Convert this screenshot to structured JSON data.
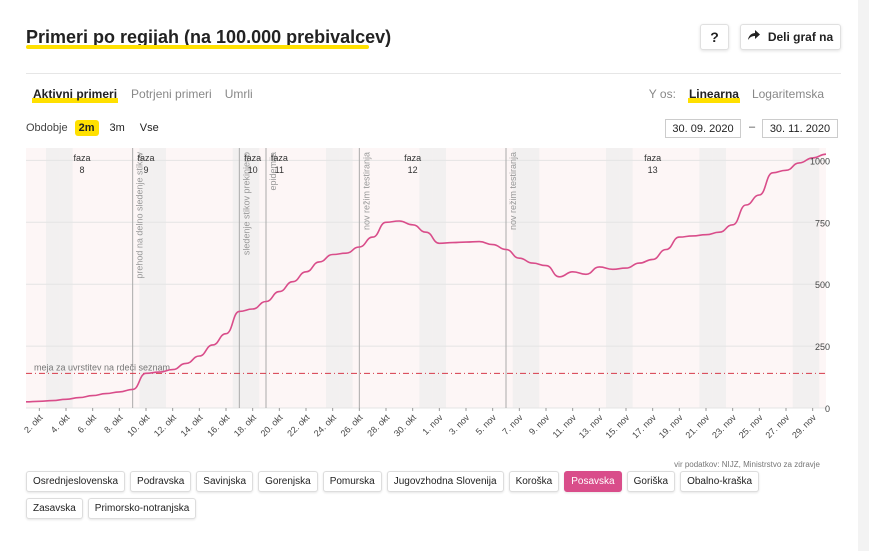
{
  "header": {
    "title": "Primeri po regijah (na 100.000 prebivalcev)",
    "help_label": "?",
    "share_label": "Deli graf na"
  },
  "tabs": [
    {
      "label": "Aktivni primeri",
      "active": true
    },
    {
      "label": "Potrjeni primeri",
      "active": false
    },
    {
      "label": "Umrli",
      "active": false
    }
  ],
  "yscale": {
    "label": "Y os:",
    "options": [
      {
        "label": "Linearna",
        "active": true
      },
      {
        "label": "Logaritemska",
        "active": false
      }
    ]
  },
  "period": {
    "label": "Obdobje",
    "options": [
      {
        "label": "2m",
        "active": true
      },
      {
        "label": "3m",
        "active": false
      },
      {
        "label": "Vse",
        "active": false
      }
    ]
  },
  "dates": {
    "from": "30. 09. 2020",
    "to": "30. 11. 2020",
    "separator": "–"
  },
  "source": "vir podatkov: NIJZ, Ministrstvo za zdravje",
  "regions": [
    {
      "label": "Osrednjeslovenska",
      "active": false
    },
    {
      "label": "Podravska",
      "active": false
    },
    {
      "label": "Savinjska",
      "active": false
    },
    {
      "label": "Gorenjska",
      "active": false
    },
    {
      "label": "Pomurska",
      "active": false
    },
    {
      "label": "Jugovzhodna Slovenija",
      "active": false
    },
    {
      "label": "Koroška",
      "active": false
    },
    {
      "label": "Posavska",
      "active": true
    },
    {
      "label": "Goriška",
      "active": false
    },
    {
      "label": "Obalno-kraška",
      "active": false
    },
    {
      "label": "Zasavska",
      "active": false
    },
    {
      "label": "Primorsko-notranjska",
      "active": false
    }
  ],
  "chart_data": {
    "type": "line",
    "title": "",
    "xlabel": "",
    "ylabel": "",
    "x_start": "2020-10-01",
    "x_end": "2020-11-30",
    "ylim": [
      0,
      1050
    ],
    "y_ticks": [
      "0",
      "250",
      "500",
      "750",
      "1000"
    ],
    "x_ticks": [
      "2. okt",
      "4. okt",
      "6. okt",
      "8. okt",
      "10. okt",
      "12. okt",
      "14. okt",
      "16. okt",
      "18. okt",
      "20. okt",
      "22. okt",
      "24. okt",
      "26. okt",
      "28. okt",
      "30. okt",
      "1. nov",
      "3. nov",
      "5. nov",
      "7. nov",
      "9. nov",
      "11. nov",
      "13. nov",
      "15. nov",
      "17. nov",
      "19. nov",
      "21. nov",
      "23. nov",
      "25. nov",
      "27. nov",
      "29. nov"
    ],
    "line_color": "#d94d8a",
    "series": [
      {
        "x": [
          "2020-10-01",
          "2020-10-02",
          "2020-10-03",
          "2020-10-04",
          "2020-10-05",
          "2020-10-06",
          "2020-10-07",
          "2020-10-08",
          "2020-10-09",
          "2020-10-10",
          "2020-10-11",
          "2020-10-12",
          "2020-10-13",
          "2020-10-14",
          "2020-10-15",
          "2020-10-16",
          "2020-10-17",
          "2020-10-18",
          "2020-10-19",
          "2020-10-20",
          "2020-10-21",
          "2020-10-22",
          "2020-10-23",
          "2020-10-24",
          "2020-10-25",
          "2020-10-26",
          "2020-10-27",
          "2020-10-28",
          "2020-10-29",
          "2020-10-30",
          "2020-10-31",
          "2020-11-01",
          "2020-11-02",
          "2020-11-03",
          "2020-11-04",
          "2020-11-05",
          "2020-11-06",
          "2020-11-07",
          "2020-11-08",
          "2020-11-09",
          "2020-11-10",
          "2020-11-11",
          "2020-11-12",
          "2020-11-13",
          "2020-11-14",
          "2020-11-15",
          "2020-11-16",
          "2020-11-17",
          "2020-11-18",
          "2020-11-19",
          "2020-11-20",
          "2020-11-21",
          "2020-11-22",
          "2020-11-23",
          "2020-11-24",
          "2020-11-25",
          "2020-11-26",
          "2020-11-27",
          "2020-11-28",
          "2020-11-29",
          "2020-11-30"
        ],
        "values": [
          25,
          27,
          30,
          35,
          42,
          50,
          58,
          65,
          75,
          140,
          145,
          155,
          180,
          210,
          255,
          300,
          390,
          400,
          430,
          470,
          510,
          550,
          590,
          620,
          625,
          650,
          690,
          750,
          755,
          740,
          710,
          665,
          668,
          670,
          672,
          660,
          640,
          605,
          585,
          575,
          530,
          550,
          540,
          570,
          560,
          565,
          585,
          600,
          640,
          690,
          695,
          700,
          710,
          740,
          820,
          860,
          950,
          960,
          990,
          1010,
          1025
        ]
      }
    ],
    "threshold": {
      "value": 140,
      "label": "meja za uvrstitev na rdeči seznam"
    },
    "phases": [
      {
        "label": "faza",
        "num": "8",
        "date": "2020-10-01"
      },
      {
        "label": "faza",
        "num": "9",
        "date": "2020-10-10"
      },
      {
        "label": "faza",
        "num": "10",
        "date": "2020-10-18"
      },
      {
        "label": "faza",
        "num": "11",
        "date": "2020-10-20"
      },
      {
        "label": "faza",
        "num": "12",
        "date": "2020-10-30"
      },
      {
        "label": "faza",
        "num": "13",
        "date": "2020-11-17"
      }
    ],
    "events": [
      {
        "label": "prehod na delno sledenje stikov",
        "date": "2020-10-09"
      },
      {
        "label": "sledenje stikov prekinjeno",
        "date": "2020-10-17"
      },
      {
        "label": "epidemija",
        "date": "2020-10-19"
      },
      {
        "label": "nov režim testiranja",
        "date": "2020-10-26"
      },
      {
        "label": "nov režim testiranja",
        "date": "2020-11-06"
      }
    ]
  }
}
